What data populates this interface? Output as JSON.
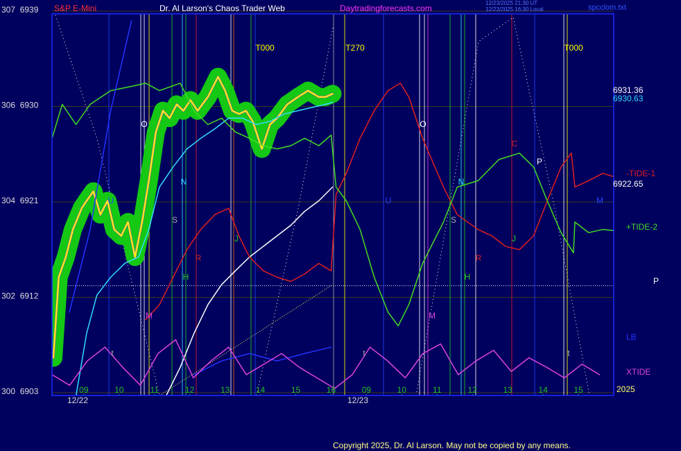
{
  "chart_data": {
    "type": "line",
    "symbol": "S&P E-Mini",
    "title": "Dr. Al Larson's Chaos Trader Web",
    "website": "Daytradingforecasts.com",
    "timestamps": [
      "12/23/2025 21:30 UT",
      "12/23/2025 16:30 Local"
    ],
    "file": "spcclom.txt",
    "copyright": "Copyright 2025, Dr. Al Larson. May not be copied by any means.",
    "year": "2025",
    "days": [
      "12/22",
      "12/23"
    ],
    "xlim": [
      -0.9,
      15
    ],
    "xticks": [
      {
        "value": 0,
        "label": "09"
      },
      {
        "value": 1,
        "label": "10"
      },
      {
        "value": 2,
        "label": "11"
      },
      {
        "value": 3,
        "label": "12"
      },
      {
        "value": 4,
        "label": "13"
      },
      {
        "value": 5,
        "label": "14"
      },
      {
        "value": 6,
        "label": "15"
      },
      {
        "value": 7,
        "label": "16"
      },
      {
        "value": 8,
        "label": "09"
      },
      {
        "value": 9,
        "label": "10"
      },
      {
        "value": 10,
        "label": "11"
      },
      {
        "value": 11,
        "label": "12"
      },
      {
        "value": 12,
        "label": "13"
      },
      {
        "value": 13,
        "label": "14"
      },
      {
        "value": 14,
        "label": "15"
      }
    ],
    "ylim": [
      6903,
      6939
    ],
    "yticks": [
      {
        "value": 6939,
        "label": "307  6939"
      },
      {
        "value": 6930,
        "label": "306  6930"
      },
      {
        "value": 6921,
        "label": "304  6921"
      },
      {
        "value": 6912,
        "label": "302  6912"
      },
      {
        "value": 6903,
        "label": "300  6903"
      }
    ],
    "grid": true,
    "hline": 6913.1,
    "right_values": [
      6931.36,
      6930.63,
      6922.65
    ],
    "annotations": [
      "O",
      "N",
      "S",
      "H",
      "R",
      "M",
      "J",
      "U",
      "t",
      "O",
      "N",
      "S",
      "H",
      "R",
      "M",
      "J",
      "U",
      "C",
      "P",
      "M",
      "t",
      "t",
      "T000",
      "T270",
      "T000",
      "P"
    ],
    "series": [
      {
        "color": "#ffff00",
        "halo": "#14c814",
        "x": [
          -0.86,
          -0.71,
          -0.51,
          -0.31,
          -0.06,
          0.08,
          0.27,
          0.47,
          0.67,
          0.86,
          1.06,
          1.25,
          1.45,
          1.65,
          1.84,
          2.04,
          2.24,
          2.43,
          2.63,
          2.82,
          3.02,
          3.22,
          3.51,
          3.8,
          4.0,
          4.2,
          4.39,
          4.59,
          4.78,
          5.04,
          5.27,
          5.47,
          5.76,
          6.06,
          6.35,
          6.65,
          6.84,
          7.04
        ],
        "values": [
          6906.3,
          6913.9,
          6915.8,
          6918.4,
          6920.4,
          6921.1,
          6922.0,
          6919.8,
          6921.1,
          6918.4,
          6917.8,
          6919.1,
          6915.8,
          6919.1,
          6923.0,
          6927.6,
          6929.6,
          6928.9,
          6930.2,
          6929.6,
          6930.6,
          6929.6,
          6930.9,
          6932.8,
          6931.5,
          6929.6,
          6929.3,
          6929.6,
          6928.6,
          6926.0,
          6928.3,
          6928.9,
          6930.2,
          6930.9,
          6931.5,
          6930.9,
          6930.9,
          6931.2
        ]
      },
      {
        "color": "#33ddff",
        "x": [
          -0.22,
          0.08,
          0.37,
          0.76,
          1.16,
          1.55,
          1.84,
          2.14,
          2.53,
          2.92,
          3.31,
          3.71,
          4.1,
          4.49,
          4.88,
          5.27,
          5.67,
          6.06,
          6.45,
          6.84,
          7.04
        ],
        "values": [
          6902.7,
          6908.6,
          6912.2,
          6913.9,
          6915.2,
          6915.8,
          6918.4,
          6922.4,
          6924.3,
          6926.0,
          6927.0,
          6927.9,
          6928.9,
          6928.9,
          6928.3,
          6928.6,
          6929.3,
          6929.6,
          6929.9,
          6930.2,
          6930.4
        ]
      },
      {
        "color": "#ffffff",
        "x": [
          2.33,
          2.73,
          3.12,
          3.51,
          3.9,
          4.29,
          4.69,
          5.08,
          5.47,
          5.86,
          6.25,
          6.65,
          7.04
        ],
        "values": [
          6902.7,
          6905.4,
          6908.6,
          6911.3,
          6913.2,
          6914.5,
          6915.8,
          6916.8,
          6917.8,
          6918.8,
          6920.1,
          6921.1,
          6922.4
        ]
      },
      {
        "name": "-TIDE-1",
        "color": "#e02020",
        "x": [
          1.75,
          2.14,
          2.53,
          2.92,
          3.31,
          3.71,
          4.1,
          4.39,
          4.69,
          5.08,
          5.47,
          5.86,
          6.25,
          6.65,
          7.0,
          7.14,
          7.43,
          7.82,
          8.22,
          8.61,
          8.96,
          9.2,
          9.59,
          10.18,
          10.57,
          11.16,
          11.55,
          11.94,
          12.33,
          12.73,
          13.12,
          13.51,
          13.8,
          13.9,
          14.29,
          14.69,
          14.98
        ],
        "values": [
          6909.9,
          6911.3,
          6913.9,
          6916.5,
          6918.4,
          6919.8,
          6920.4,
          6917.8,
          6915.8,
          6914.5,
          6913.9,
          6913.5,
          6914.2,
          6915.2,
          6914.5,
          6921.7,
          6923.7,
          6927.0,
          6929.6,
          6931.5,
          6932.2,
          6930.9,
          6927.0,
          6922.4,
          6919.8,
          6918.4,
          6917.8,
          6916.8,
          6916.5,
          6917.8,
          6921.1,
          6924.3,
          6925.6,
          6922.4,
          6923.0,
          6923.7,
          6923.4
        ]
      },
      {
        "name": "+TIDE-2",
        "color": "#44dd22",
        "x": [
          -0.9,
          -0.61,
          -0.22,
          0.18,
          0.76,
          1.35,
          1.75,
          2.14,
          2.73,
          3.12,
          3.51,
          3.9,
          4.29,
          4.69,
          5.08,
          5.47,
          5.86,
          6.25,
          6.65,
          7.0,
          7.14,
          7.43,
          7.82,
          8.22,
          8.61,
          8.9,
          9.2,
          9.59,
          10.18,
          10.57,
          11.16,
          11.75,
          12.33,
          12.73,
          13.12,
          13.51,
          13.86,
          13.9,
          14.29,
          14.69,
          14.98
        ],
        "values": [
          6927.0,
          6930.2,
          6928.3,
          6930.2,
          6931.5,
          6931.9,
          6932.2,
          6931.5,
          6932.2,
          6929.6,
          6928.3,
          6928.9,
          6927.6,
          6927.0,
          6926.3,
          6926.0,
          6926.3,
          6927.0,
          6926.3,
          6927.3,
          6922.4,
          6921.1,
          6918.4,
          6913.9,
          6910.6,
          6909.3,
          6911.3,
          6915.2,
          6919.1,
          6922.4,
          6923.0,
          6925.0,
          6925.6,
          6924.3,
          6921.1,
          6918.1,
          6916.2,
          6919.1,
          6918.1,
          6918.4,
          6918.3
        ]
      },
      {
        "name": "LB",
        "color": "#2233ff",
        "x": [
          -0.41,
          0.18,
          0.76,
          1.35,
          2.33,
          3.12,
          3.9,
          4.69,
          5.47,
          6.25,
          7.0
        ],
        "values": [
          6910.6,
          6918.4,
          6929.6,
          6938.1,
          null,
          6904.7,
          6906.0,
          6906.7,
          6906.0,
          6906.7,
          6907.3
        ]
      },
      {
        "name": "XTIDE",
        "color": "#dd44dd",
        "x": [
          -0.9,
          -0.4,
          0.1,
          0.6,
          1.1,
          1.6,
          2.1,
          2.6,
          3.1,
          3.6,
          4.1,
          4.6,
          5.1,
          5.6,
          6.1,
          6.6,
          7.1,
          7.6,
          8.1,
          8.6,
          9.1,
          9.6,
          10.1,
          10.6,
          11.1,
          11.6,
          12.1,
          12.6,
          13.1,
          13.6,
          14.1,
          14.6
        ],
        "values": [
          6904.7,
          6903.7,
          6906.0,
          6907.3,
          6905.4,
          6903.7,
          6906.7,
          6908.0,
          6904.4,
          6906.0,
          6907.3,
          6904.7,
          6905.7,
          6906.7,
          6905.4,
          6904.4,
          6903.4,
          6904.7,
          6907.3,
          6906.0,
          6904.4,
          6906.7,
          6907.6,
          6904.7,
          6906.0,
          6907.0,
          6905.0,
          6906.3,
          6905.4,
          6904.4,
          6905.7,
          6904.7
        ]
      }
    ]
  }
}
